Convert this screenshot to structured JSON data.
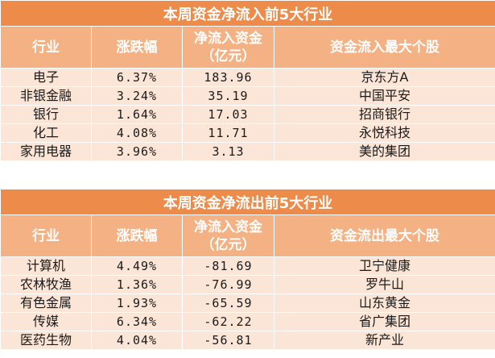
{
  "inflow": {
    "title": "本周资金净流入前5大行业",
    "headers": [
      "行业",
      "涨跌幅",
      "净流入资金\n（亿元）",
      "资金流入最大个股"
    ],
    "rows": [
      [
        "电子",
        "6.37%",
        "183.96",
        "京东方A"
      ],
      [
        "非银金融",
        "3.24%",
        "35.19",
        "中国平安"
      ],
      [
        "银行",
        "1.64%",
        "17.03",
        "招商银行"
      ],
      [
        "化工",
        "4.08%",
        "11.71",
        "永悦科技"
      ],
      [
        "家用电器",
        "3.96%",
        "3.13",
        "美的集团"
      ]
    ]
  },
  "outflow": {
    "title": "本周资金净流出前5大行业",
    "headers": [
      "行业",
      "涨跌幅",
      "净流入资金\n（亿元）",
      "资金流出最大个股"
    ],
    "rows": [
      [
        "计算机",
        "4.49%",
        "-81.69",
        "卫宁健康"
      ],
      [
        "农林牧渔",
        "1.36%",
        "-76.99",
        "罗牛山"
      ],
      [
        "有色金属",
        "1.93%",
        "-65.59",
        "山东黄金"
      ],
      [
        "传媒",
        "6.34%",
        "-62.22",
        "省广集团"
      ],
      [
        "医药生物",
        "4.04%",
        "-56.81",
        "新产业"
      ]
    ]
  }
}
